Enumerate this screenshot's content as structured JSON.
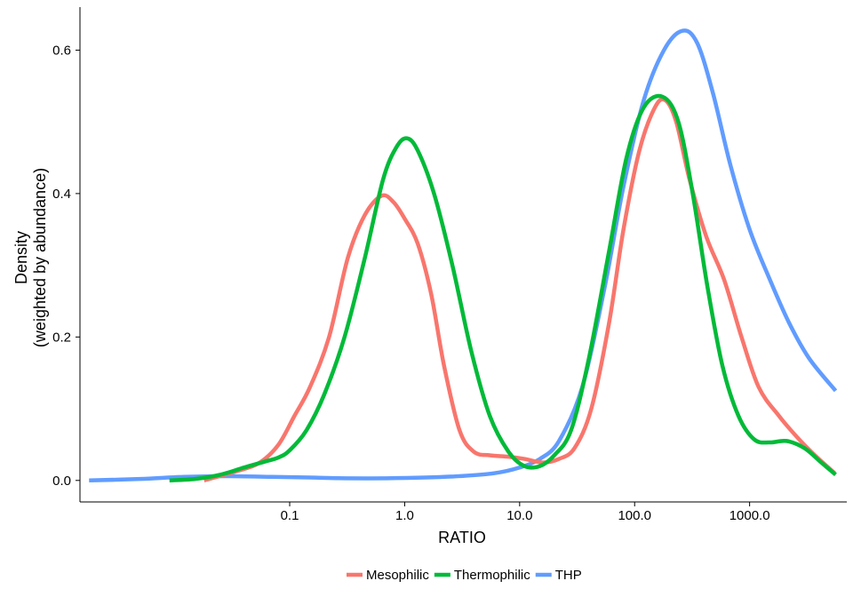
{
  "chart_data": {
    "type": "line",
    "title": "",
    "xlabel": "RATIO",
    "ylabel_line1": "Density",
    "ylabel_line2": "(weighted by abundance)",
    "x_scale": "log10",
    "xlim": [
      0.0015,
      7000
    ],
    "ylim": [
      -0.03,
      0.66
    ],
    "x_ticks": [
      {
        "value": 0.1,
        "label": "0.1"
      },
      {
        "value": 1,
        "label": "1.0"
      },
      {
        "value": 10,
        "label": "10.0"
      },
      {
        "value": 100,
        "label": "100.0"
      },
      {
        "value": 1000,
        "label": "1000.0"
      }
    ],
    "y_ticks": [
      {
        "value": 0,
        "label": "0.0"
      },
      {
        "value": 0.2,
        "label": "0.2"
      },
      {
        "value": 0.4,
        "label": "0.4"
      },
      {
        "value": 0.6,
        "label": "0.6"
      }
    ],
    "grid": false,
    "legend_position": "bottom",
    "series": [
      {
        "name": "Mesophilic",
        "color": "#F8766D",
        "points": [
          [
            0.018,
            0.0
          ],
          [
            0.035,
            0.013
          ],
          [
            0.055,
            0.025
          ],
          [
            0.08,
            0.05
          ],
          [
            0.11,
            0.09
          ],
          [
            0.15,
            0.13
          ],
          [
            0.22,
            0.2
          ],
          [
            0.32,
            0.31
          ],
          [
            0.45,
            0.37
          ],
          [
            0.63,
            0.397
          ],
          [
            0.8,
            0.388
          ],
          [
            1.0,
            0.365
          ],
          [
            1.3,
            0.33
          ],
          [
            1.7,
            0.26
          ],
          [
            2.2,
            0.16
          ],
          [
            3.0,
            0.07
          ],
          [
            4.0,
            0.04
          ],
          [
            5.5,
            0.035
          ],
          [
            8.0,
            0.033
          ],
          [
            11.0,
            0.03
          ],
          [
            16.0,
            0.025
          ],
          [
            22.0,
            0.03
          ],
          [
            30.0,
            0.045
          ],
          [
            42.0,
            0.1
          ],
          [
            60.0,
            0.22
          ],
          [
            80.0,
            0.35
          ],
          [
            110.0,
            0.46
          ],
          [
            150.0,
            0.52
          ],
          [
            185.0,
            0.53
          ],
          [
            230.0,
            0.5
          ],
          [
            300.0,
            0.42
          ],
          [
            420.0,
            0.34
          ],
          [
            600.0,
            0.28
          ],
          [
            850.0,
            0.2
          ],
          [
            1200.0,
            0.13
          ],
          [
            1800.0,
            0.09
          ],
          [
            2600.0,
            0.06
          ],
          [
            3700.0,
            0.035
          ],
          [
            5500.0,
            0.01
          ]
        ]
      },
      {
        "name": "Thermophilic",
        "color": "#00BA38",
        "points": [
          [
            0.009,
            0.0
          ],
          [
            0.015,
            0.002
          ],
          [
            0.025,
            0.008
          ],
          [
            0.04,
            0.018
          ],
          [
            0.06,
            0.026
          ],
          [
            0.08,
            0.032
          ],
          [
            0.1,
            0.042
          ],
          [
            0.14,
            0.07
          ],
          [
            0.2,
            0.12
          ],
          [
            0.3,
            0.2
          ],
          [
            0.45,
            0.31
          ],
          [
            0.65,
            0.42
          ],
          [
            0.85,
            0.465
          ],
          [
            1.05,
            0.477
          ],
          [
            1.3,
            0.46
          ],
          [
            1.8,
            0.4
          ],
          [
            2.6,
            0.3
          ],
          [
            3.8,
            0.18
          ],
          [
            5.5,
            0.09
          ],
          [
            8.0,
            0.04
          ],
          [
            11.0,
            0.02
          ],
          [
            15.0,
            0.02
          ],
          [
            20.0,
            0.035
          ],
          [
            28.0,
            0.07
          ],
          [
            40.0,
            0.17
          ],
          [
            60.0,
            0.32
          ],
          [
            85.0,
            0.45
          ],
          [
            120.0,
            0.52
          ],
          [
            175.0,
            0.535
          ],
          [
            240.0,
            0.5
          ],
          [
            320.0,
            0.4
          ],
          [
            430.0,
            0.27
          ],
          [
            580.0,
            0.16
          ],
          [
            800.0,
            0.09
          ],
          [
            1100.0,
            0.057
          ],
          [
            1500.0,
            0.053
          ],
          [
            2100.0,
            0.055
          ],
          [
            3000.0,
            0.045
          ],
          [
            4200.0,
            0.025
          ],
          [
            5600.0,
            0.008
          ]
        ]
      },
      {
        "name": "THP",
        "color": "#619CFF",
        "points": [
          [
            0.0018,
            0.0
          ],
          [
            0.005,
            0.002
          ],
          [
            0.012,
            0.005
          ],
          [
            0.03,
            0.006
          ],
          [
            0.07,
            0.005
          ],
          [
            0.15,
            0.004
          ],
          [
            0.3,
            0.003
          ],
          [
            0.7,
            0.003
          ],
          [
            1.5,
            0.004
          ],
          [
            3.0,
            0.006
          ],
          [
            6.0,
            0.01
          ],
          [
            10.0,
            0.018
          ],
          [
            15.0,
            0.03
          ],
          [
            22.0,
            0.055
          ],
          [
            35.0,
            0.13
          ],
          [
            55.0,
            0.27
          ],
          [
            80.0,
            0.41
          ],
          [
            120.0,
            0.53
          ],
          [
            180.0,
            0.6
          ],
          [
            260.0,
            0.627
          ],
          [
            350.0,
            0.61
          ],
          [
            480.0,
            0.54
          ],
          [
            680.0,
            0.44
          ],
          [
            1000.0,
            0.35
          ],
          [
            1500.0,
            0.28
          ],
          [
            2200.0,
            0.22
          ],
          [
            3300.0,
            0.17
          ],
          [
            5600.0,
            0.125
          ]
        ]
      }
    ]
  }
}
